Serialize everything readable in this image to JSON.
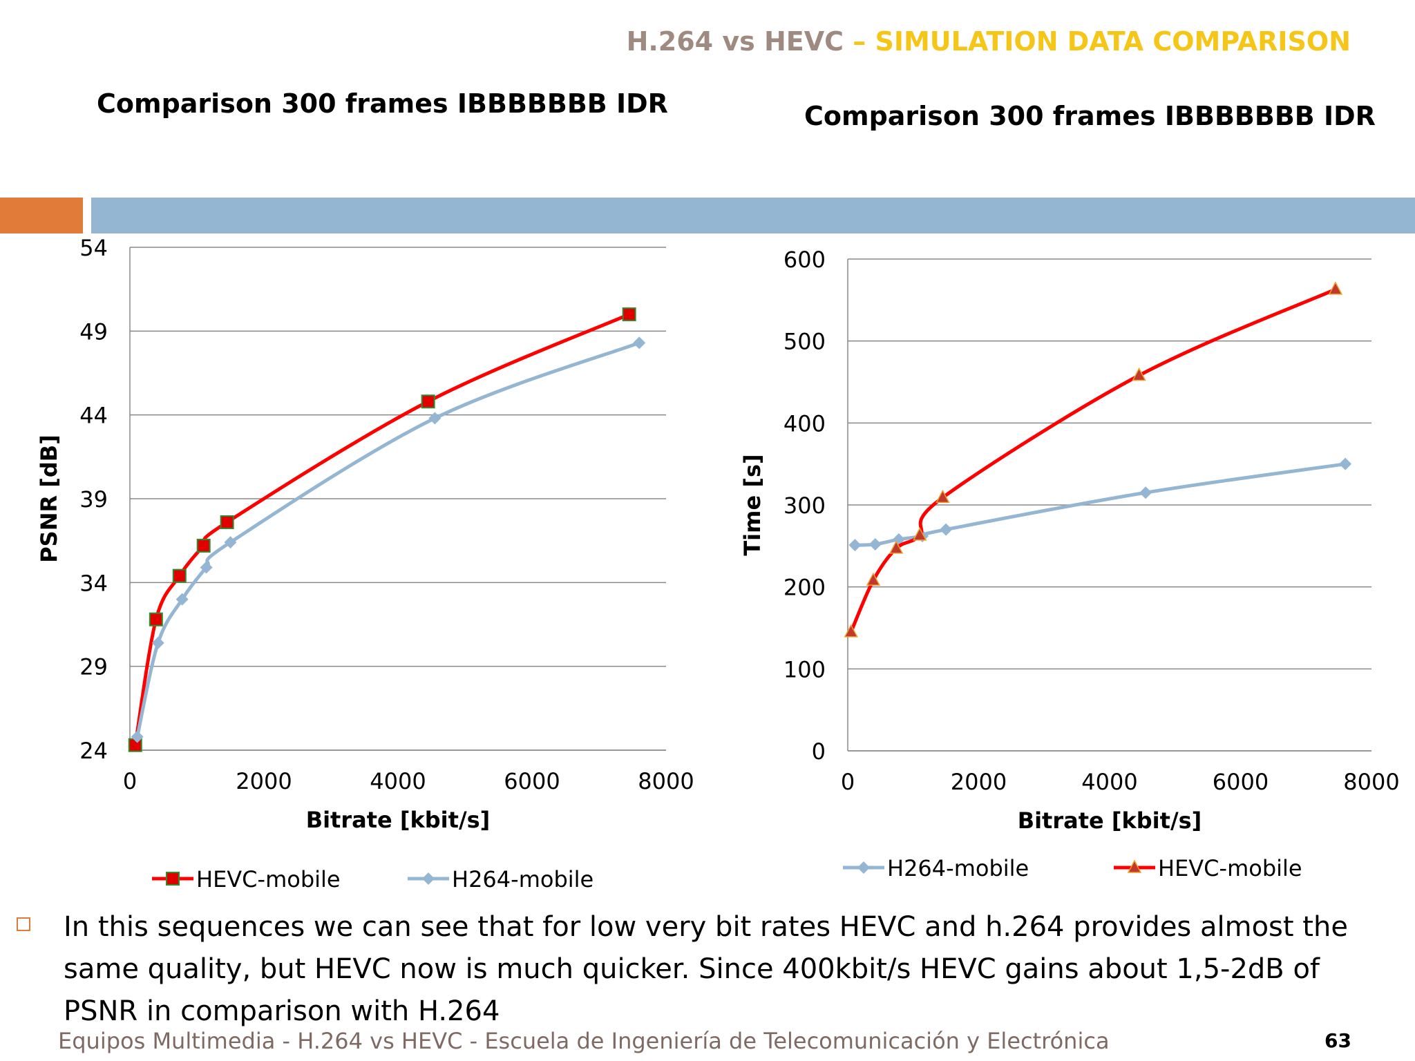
{
  "slide": {
    "title_part1": "H.264 vs HEVC",
    "title_part2": " – SIMULATION DATA COMPARISON",
    "body": "In this sequences we can see that for low very bit rates HEVC and h.264 provides almost the same quality, but HEVC now is much quicker. Since 400kbit/s HEVC gains about 1,5-2dB of PSNR in comparison with H.264",
    "footer": "Equipos Multimedia - H.264 vs HEVC - Escuela de Ingeniería de Telecomunicación y Electrónica",
    "page_number": "63",
    "colors": {
      "accent_orange": "#e07b39",
      "accent_blue": "#94b6d2",
      "title_gray": "#9e8a80",
      "title_yellow": "#f5c518"
    }
  },
  "chart_data": [
    {
      "type": "line",
      "title": "Comparison 300 frames IBBBBBBB IDR",
      "xlabel": "Bitrate [kbit/s]",
      "ylabel": "PSNR [dB]",
      "xlim": [
        0,
        8000
      ],
      "ylim": [
        24,
        54
      ],
      "xticks": [
        0,
        2000,
        4000,
        6000,
        8000
      ],
      "yticks": [
        24,
        29,
        34,
        39,
        44,
        49,
        54
      ],
      "grid": "horizontal",
      "legend_position": "bottom",
      "series": [
        {
          "name": "HEVC-mobile",
          "color": "#ff0000",
          "marker": "square",
          "x": [
            80,
            390,
            740,
            1100,
            1450,
            4450,
            7450
          ],
          "y": [
            24.3,
            31.8,
            34.4,
            36.2,
            37.6,
            44.8,
            50
          ]
        },
        {
          "name": "H264-mobile",
          "color": "#94b6d2",
          "marker": "diamond",
          "x": [
            110,
            420,
            780,
            1140,
            1500,
            4550,
            7600
          ],
          "y": [
            24.8,
            30.4,
            33,
            34.9,
            36.4,
            43.8,
            48.3
          ]
        }
      ]
    },
    {
      "type": "line",
      "title": "Comparison 300 frames IBBBBBBB IDR",
      "xlabel": "Bitrate [kbit/s]",
      "ylabel": "Time [s]",
      "xlim": [
        0,
        8000
      ],
      "ylim": [
        0,
        600
      ],
      "xticks": [
        0,
        2000,
        4000,
        6000,
        8000
      ],
      "yticks": [
        0,
        100,
        200,
        300,
        400,
        500,
        600
      ],
      "grid": "horizontal",
      "legend_position": "bottom",
      "series": [
        {
          "name": "H264-mobile",
          "color": "#94b6d2",
          "marker": "diamond",
          "x": [
            110,
            420,
            780,
            1140,
            1500,
            4550,
            7600
          ],
          "y": [
            251,
            252,
            258,
            262,
            270,
            315,
            350
          ]
        },
        {
          "name": "HEVC-mobile",
          "color": "#ff0000",
          "marker": "triangle",
          "x": [
            50,
            390,
            740,
            1100,
            1450,
            4450,
            7450
          ],
          "y": [
            145,
            208,
            247,
            263,
            309,
            458,
            563
          ]
        }
      ]
    }
  ]
}
